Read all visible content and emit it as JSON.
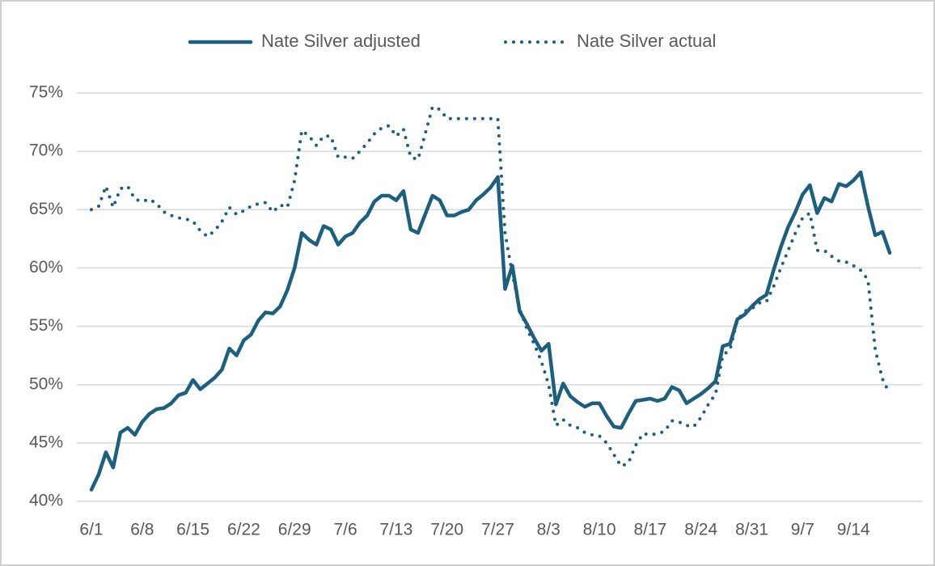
{
  "chart_data": {
    "type": "line",
    "categories": [
      "6/1",
      null,
      null,
      null,
      null,
      null,
      null,
      "6/8",
      null,
      null,
      null,
      null,
      null,
      null,
      "6/15",
      null,
      null,
      null,
      null,
      null,
      null,
      "6/22",
      null,
      null,
      null,
      null,
      null,
      null,
      "6/29",
      null,
      null,
      null,
      null,
      null,
      null,
      "7/6",
      null,
      null,
      null,
      null,
      null,
      null,
      "7/13",
      null,
      null,
      null,
      null,
      null,
      null,
      "7/20",
      null,
      null,
      null,
      null,
      null,
      null,
      "7/27",
      null,
      null,
      null,
      null,
      null,
      null,
      "8/3",
      null,
      null,
      null,
      null,
      null,
      null,
      "8/10",
      null,
      null,
      null,
      null,
      null,
      null,
      "8/17",
      null,
      null,
      null,
      null,
      null,
      null,
      "8/24",
      null,
      null,
      null,
      null,
      null,
      null,
      "8/31",
      null,
      null,
      null,
      null,
      null,
      null,
      "9/7",
      null,
      null,
      null,
      null,
      null,
      null,
      "9/14",
      null,
      null,
      null,
      null,
      null
    ],
    "series": [
      {
        "name": "Nate Silver adjusted",
        "color": "#1c5f7f",
        "dash": "solid",
        "values": [
          41.0,
          42.3,
          44.2,
          42.9,
          45.9,
          46.3,
          45.7,
          46.8,
          47.5,
          47.9,
          48.0,
          48.4,
          49.1,
          49.3,
          50.4,
          49.6,
          50.1,
          50.6,
          51.3,
          53.1,
          52.5,
          53.8,
          54.3,
          55.5,
          56.2,
          56.1,
          56.7,
          58.1,
          60.0,
          63.0,
          62.4,
          62.0,
          63.6,
          63.3,
          62.0,
          62.7,
          63.0,
          63.9,
          64.5,
          65.7,
          66.2,
          66.2,
          65.8,
          66.6,
          63.3,
          63.0,
          64.6,
          66.2,
          65.8,
          64.5,
          64.5,
          64.8,
          65.0,
          65.8,
          66.3,
          66.9,
          67.8,
          58.2,
          60.2,
          56.3,
          55.2,
          54.0,
          52.9,
          53.5,
          48.3,
          50.1,
          49.0,
          48.5,
          48.1,
          48.4,
          48.4,
          47.3,
          46.4,
          46.3,
          47.5,
          48.6,
          48.7,
          48.8,
          48.6,
          48.8,
          49.8,
          49.5,
          48.4,
          48.8,
          49.2,
          49.7,
          50.3,
          53.3,
          53.5,
          55.6,
          56.0,
          56.7,
          57.3,
          57.7,
          59.8,
          61.8,
          63.5,
          64.8,
          66.3,
          67.1,
          64.7,
          66.0,
          65.7,
          67.2,
          67.0,
          67.5,
          68.2,
          65.3,
          62.8,
          63.1,
          61.3
        ]
      },
      {
        "name": "Nate Silver actual",
        "color": "#1c5f7f",
        "dash": "dotted",
        "values": [
          65.0,
          65.3,
          67.0,
          65.2,
          66.8,
          67.0,
          65.9,
          65.7,
          65.9,
          65.5,
          64.8,
          64.5,
          64.3,
          64.2,
          64.0,
          63.2,
          62.7,
          63.2,
          64.0,
          65.2,
          64.6,
          64.9,
          65.3,
          65.5,
          65.6,
          64.8,
          65.4,
          65.2,
          67.5,
          71.8,
          71.3,
          70.5,
          71.3,
          71.3,
          69.5,
          69.5,
          69.4,
          70.0,
          70.7,
          71.5,
          72.0,
          72.2,
          71.3,
          71.9,
          69.5,
          69.3,
          71.5,
          73.8,
          73.6,
          72.8,
          72.8,
          72.8,
          72.8,
          72.8,
          72.8,
          72.8,
          72.8,
          63.0,
          59.5,
          56.5,
          54.8,
          53.5,
          52.0,
          50.0,
          46.5,
          47.0,
          46.5,
          46.3,
          45.9,
          45.7,
          45.6,
          45.0,
          44.0,
          43.0,
          43.3,
          44.8,
          45.8,
          45.7,
          45.8,
          46.0,
          46.9,
          46.8,
          46.5,
          46.4,
          47.2,
          48.3,
          49.2,
          52.5,
          53.0,
          55.5,
          56.3,
          56.5,
          57.0,
          57.1,
          58.4,
          60.0,
          61.5,
          63.0,
          64.3,
          64.7,
          61.5,
          61.5,
          61.0,
          60.6,
          60.5,
          60.2,
          59.8,
          59.0,
          53.0,
          50.5,
          49.2
        ]
      }
    ],
    "ylim": [
      40,
      75
    ],
    "yticks": [
      {
        "value": 40,
        "label": "40%"
      },
      {
        "value": 45,
        "label": "45%"
      },
      {
        "value": 50,
        "label": "50%"
      },
      {
        "value": 55,
        "label": "55%"
      },
      {
        "value": 60,
        "label": "60%"
      },
      {
        "value": 65,
        "label": "65%"
      },
      {
        "value": 70,
        "label": "70%"
      },
      {
        "value": 75,
        "label": "75%"
      }
    ],
    "grid": true,
    "legend": "top"
  }
}
